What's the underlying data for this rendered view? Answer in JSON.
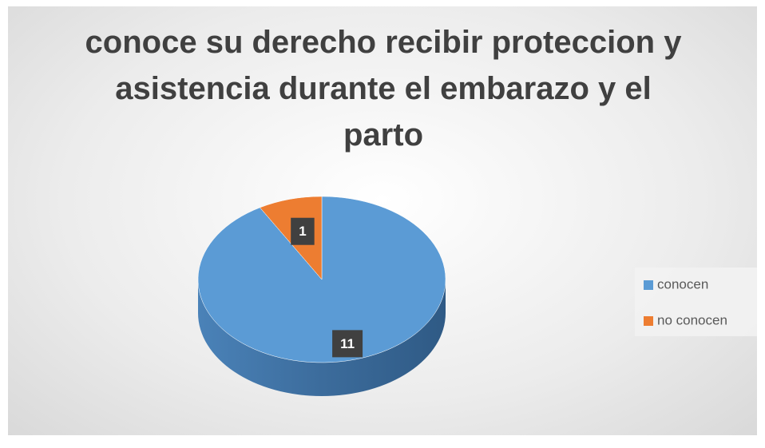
{
  "chart_data": {
    "type": "pie",
    "title": "conoce su derecho recibir proteccion y asistencia durante el embarazo y el parto",
    "categories": [
      "conocen",
      "no conocen"
    ],
    "values": [
      11,
      1
    ],
    "colors": [
      "#5b9bd5",
      "#ed7d31"
    ],
    "legend": "right"
  }
}
